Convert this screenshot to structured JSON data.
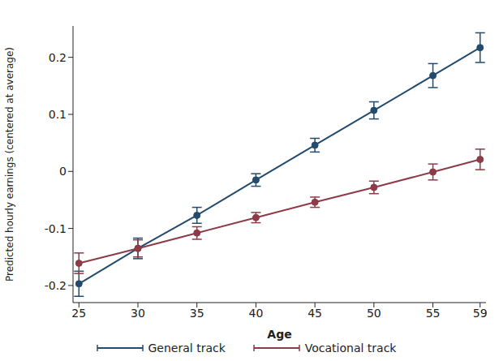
{
  "chart_data": {
    "type": "line",
    "x_label": "Age",
    "y_label": "Predicted hourly earnings (centered at average)",
    "x": [
      25,
      30,
      35,
      40,
      45,
      50,
      55,
      59
    ],
    "xlim": [
      24.5,
      59.5
    ],
    "xticks": [
      25,
      30,
      35,
      40,
      45,
      50,
      55,
      59
    ],
    "ylim": [
      -0.23,
      0.255
    ],
    "yticks": [
      -0.2,
      -0.1,
      0,
      0.1,
      0.2
    ],
    "grid": false,
    "legend": "bottom",
    "series": [
      {
        "name": "General track",
        "color": "#234b6e",
        "marker": "circle",
        "values": [
          -0.197,
          -0.135,
          -0.077,
          -0.015,
          0.046,
          0.107,
          0.168,
          0.217
        ],
        "errors": [
          0.022,
          0.018,
          0.014,
          0.011,
          0.012,
          0.015,
          0.021,
          0.026
        ]
      },
      {
        "name": "Vocational track",
        "color": "#8d3b48",
        "marker": "circle",
        "values": [
          -0.161,
          -0.135,
          -0.108,
          -0.081,
          -0.054,
          -0.028,
          -0.001,
          0.021
        ],
        "errors": [
          0.018,
          0.015,
          0.011,
          0.009,
          0.009,
          0.011,
          0.014,
          0.018
        ]
      }
    ]
  }
}
